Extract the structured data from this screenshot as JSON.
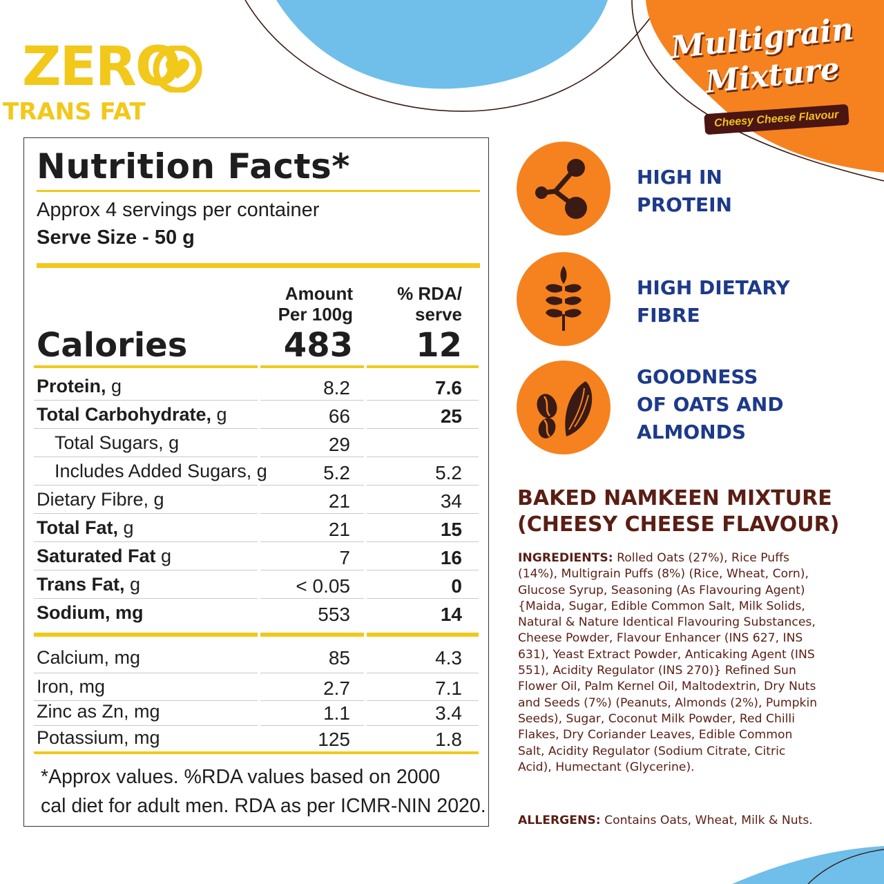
{
  "colors": {
    "yellow": "#f2c81a",
    "orange": "#f5821f",
    "sky_blue": "#6fbfea",
    "navy": "#1d3a8a",
    "maroon": "#5a1e14"
  },
  "badge": {
    "zero": "ZERO",
    "trans_fat": "TRANS FAT",
    "icon": "heart-icon"
  },
  "brand": {
    "line1": "Multigrain",
    "line2": "Mixture",
    "flavour": "Cheesy Cheese Flavour"
  },
  "nutrition": {
    "title": "Nutrition Facts*",
    "servings_per_container": "Approx 4 servings per container",
    "serve_size": "Serve Size - 50 g",
    "col_amount_line1": "Amount",
    "col_amount_line2": "Per 100g",
    "col_rda_line1": "% RDA/",
    "col_rda_line2": "serve",
    "calories_label": "Calories",
    "calories_amount": "483",
    "calories_rda": "12",
    "rows": [
      {
        "name": "Protein,",
        "unit": " g",
        "amount": "8.2",
        "rda": "7.6"
      },
      {
        "name": "Total Carbohydrate,",
        "unit": " g",
        "amount": "66",
        "rda": "25"
      },
      {
        "name": "Total Sugars, g",
        "amount": "29",
        "rda": ""
      },
      {
        "name": "Includes Added Sugars, g",
        "amount": "5.2",
        "rda": "5.2"
      },
      {
        "name": "Dietary Fibre, g",
        "amount": "21",
        "rda": "34"
      },
      {
        "name": "Total Fat,",
        "unit": " g",
        "amount": "21",
        "rda": "15"
      },
      {
        "name": "Saturated Fat",
        "unit": " g",
        "amount": "7",
        "rda": "16"
      },
      {
        "name": "Trans Fat,",
        "unit": " g",
        "amount": "< 0.05",
        "rda": "0"
      },
      {
        "name": "Sodium, mg",
        "amount": "553",
        "rda": "14"
      }
    ],
    "minerals": [
      {
        "name": "Calcium, mg",
        "amount": "85",
        "rda": "4.3"
      },
      {
        "name": "Iron, mg",
        "amount": "2.7",
        "rda": "7.1"
      },
      {
        "name": "Zinc as Zn, mg",
        "amount": "1.1",
        "rda": "3.4"
      },
      {
        "name": "Potassium, mg",
        "amount": "125",
        "rda": "1.8"
      }
    ],
    "footnote_line1": "*Approx values. %RDA values based on 2000",
    "footnote_line2": "cal diet for adult men. RDA as per ICMR-NIN 2020."
  },
  "features": [
    {
      "icon": "molecule-icon",
      "line1": "HIGH IN",
      "line2": "PROTEIN"
    },
    {
      "icon": "wheat-icon",
      "line1": "HIGH DIETARY",
      "line2": "FIBRE"
    },
    {
      "icon": "oats-almond-icon",
      "line1": "GOODNESS",
      "line2": "OF OATS AND",
      "line3": "ALMONDS"
    }
  ],
  "product": {
    "name_line1": "BAKED NAMKEEN MIXTURE",
    "name_line2": "(CHEESY CHEESE FLAVOUR)",
    "ingredients_label": "INGREDIENTS:",
    "ingredients_text": " Rolled Oats (27%), Rice Puffs (14%), Multigrain Puffs (8%) (Rice, Wheat, Corn), Glucose Syrup, Seasoning (As Flavouring Agent) {Maida, Sugar, Edible Common Salt, Milk Solids, Natural & Nature Identical Flavouring Substances, Cheese Powder, Flavour Enhancer (INS 627, INS 631), Yeast Extract Powder, Anticaking Agent (INS 551), Acidity Regulator (INS 270)} Refined Sun Flower Oil, Palm Kernel Oil, Maltodextrin, Dry Nuts and Seeds (7%) (Peanuts, Almonds (2%), Pumpkin Seeds), Sugar, Coconut Milk Powder, Red Chilli Flakes, Dry Coriander Leaves, Edible Common Salt, Acidity Regulator (Sodium Citrate, Citric Acid), Humectant (Glycerine).",
    "allergens_label": "ALLERGENS:",
    "allergens_text": " Contains Oats, Wheat, Milk & Nuts."
  }
}
